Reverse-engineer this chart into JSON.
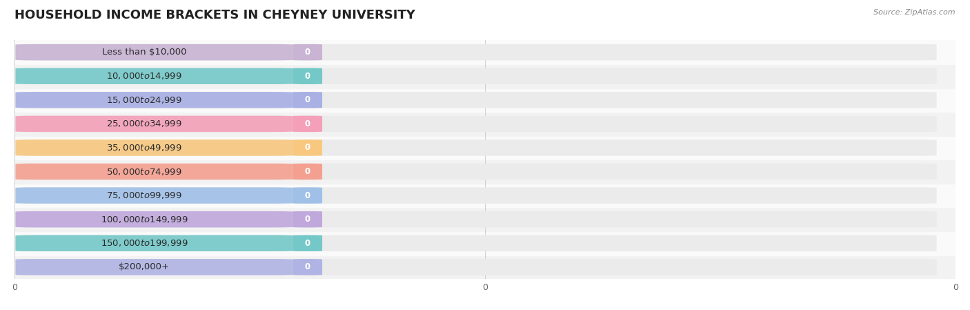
{
  "title": "HOUSEHOLD INCOME BRACKETS IN CHEYNEY UNIVERSITY",
  "source": "Source: ZipAtlas.com",
  "categories": [
    "Less than $10,000",
    "$10,000 to $14,999",
    "$15,000 to $24,999",
    "$25,000 to $34,999",
    "$35,000 to $49,999",
    "$50,000 to $74,999",
    "$75,000 to $99,999",
    "$100,000 to $149,999",
    "$150,000 to $199,999",
    "$200,000+"
  ],
  "values": [
    0,
    0,
    0,
    0,
    0,
    0,
    0,
    0,
    0,
    0
  ],
  "bar_colors": [
    "#c9b4d4",
    "#74c8c8",
    "#a8b0e4",
    "#f4a0b8",
    "#f8c880",
    "#f4a090",
    "#a0c0e8",
    "#c0a8dc",
    "#74c8c8",
    "#b0b4e4"
  ],
  "background_color": "#ffffff",
  "title_fontsize": 13,
  "label_fontsize": 9.5,
  "value_fontsize": 8.5,
  "grid_color": "#cccccc",
  "row_bg_even": "#f2f2f2",
  "row_bg_odd": "#fafafa",
  "bar_bg_color": "#ebebeb",
  "xtick_labels": [
    "0",
    "0",
    "0"
  ],
  "xtick_positions": [
    0,
    0.5,
    1.0
  ]
}
